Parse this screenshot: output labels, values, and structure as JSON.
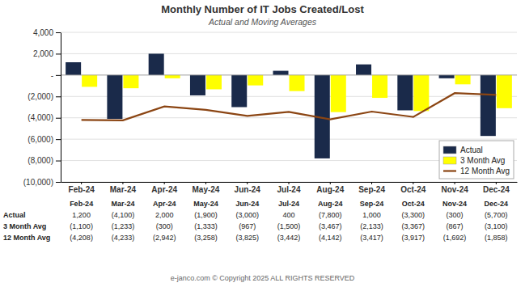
{
  "chart_data": {
    "type": "bar",
    "title": "Monthly Number of IT Jobs Created/Lost",
    "subtitle": "Actual and Moving Averages",
    "footer": "e-janco.com © Copyright 2025 ALL RIGHTS RESERVED",
    "categories": [
      "Feb-24",
      "Mar-24",
      "Apr-24",
      "May-24",
      "Jun-24",
      "Jul-24",
      "Aug-24",
      "Sep-24",
      "Oct-24",
      "Nov-24",
      "Dec-24"
    ],
    "series": [
      {
        "name": "Actual",
        "type": "bar",
        "color": "#1a2a4a",
        "values": [
          1200,
          -4100,
          2000,
          -1900,
          -3000,
          400,
          -7800,
          1000,
          -3300,
          -300,
          -5700
        ],
        "value_labels": [
          "1,200",
          "(4,100)",
          "2,000",
          "(1,900)",
          "(3,000)",
          "400",
          "(7,800)",
          "1,000",
          "(3,300)",
          "(300)",
          "(5,700)"
        ]
      },
      {
        "name": "3 Month Avg",
        "type": "bar",
        "color": "#ffff00",
        "values": [
          -1100,
          -1233,
          -300,
          -1333,
          -967,
          -1500,
          -3467,
          -2133,
          -3367,
          -867,
          -3100
        ],
        "value_labels": [
          "(1,100)",
          "(1,233)",
          "(300)",
          "(1,333)",
          "(967)",
          "(1,500)",
          "(3,467)",
          "(2,133)",
          "(3,367)",
          "(867)",
          "(3,100)"
        ]
      },
      {
        "name": "12 Month Avg",
        "type": "line",
        "color": "#8b4513",
        "values": [
          -4208,
          -4233,
          -2942,
          -3258,
          -3825,
          -3442,
          -4142,
          -3417,
          -3917,
          -1692,
          -1858
        ],
        "value_labels": [
          "(4,208)",
          "(4,233)",
          "(2,942)",
          "(3,258)",
          "(3,825)",
          "(3,442)",
          "(4,142)",
          "(3,417)",
          "(3,917)",
          "(1,692)",
          "(1,858)"
        ]
      }
    ],
    "ylim": [
      -10000,
      4000
    ],
    "yticks": [
      {
        "value": 4000,
        "label": "4,000"
      },
      {
        "value": 2000,
        "label": "2,000"
      },
      {
        "value": 0,
        "label": "-"
      },
      {
        "value": -2000,
        "label": "(2,000)"
      },
      {
        "value": -4000,
        "label": "(4,000)"
      },
      {
        "value": -6000,
        "label": "(6,000)"
      },
      {
        "value": -8000,
        "label": "(8,000)"
      },
      {
        "value": -10000,
        "label": "(10,000)"
      }
    ],
    "grid": true,
    "legend": "lower right"
  }
}
